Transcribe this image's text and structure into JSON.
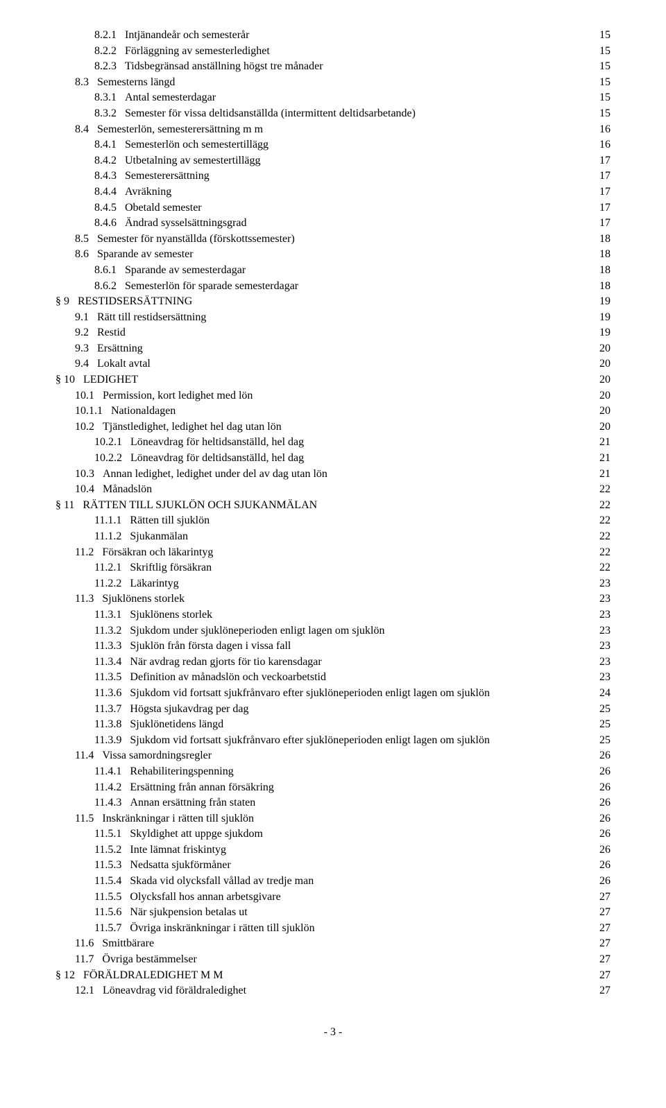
{
  "pageNumber": "- 3 -",
  "entries": [
    {
      "indent": 2,
      "num": "8.2.1",
      "title": "Intjänandeår och semesterår",
      "page": "15"
    },
    {
      "indent": 2,
      "num": "8.2.2",
      "title": "Förläggning av semesterledighet",
      "page": "15"
    },
    {
      "indent": 2,
      "num": "8.2.3",
      "title": "Tidsbegränsad anställning högst tre månader",
      "page": "15"
    },
    {
      "indent": 1,
      "num": "8.3",
      "title": "Semesterns längd",
      "page": "15"
    },
    {
      "indent": 2,
      "num": "8.3.1",
      "title": "Antal semesterdagar",
      "page": "15"
    },
    {
      "indent": 2,
      "num": "8.3.2",
      "title": "Semester för vissa deltidsanställda (intermittent deltidsarbetande)",
      "page": "15"
    },
    {
      "indent": 1,
      "num": "8.4",
      "title": "Semesterlön, semesterersättning m m",
      "page": "16"
    },
    {
      "indent": 2,
      "num": "8.4.1",
      "title": "Semesterlön och semestertillägg",
      "page": "16"
    },
    {
      "indent": 2,
      "num": "8.4.2",
      "title": "Utbetalning av semestertillägg",
      "page": "17"
    },
    {
      "indent": 2,
      "num": "8.4.3",
      "title": "Semesterersättning",
      "page": "17"
    },
    {
      "indent": 2,
      "num": "8.4.4",
      "title": "Avräkning",
      "page": "17"
    },
    {
      "indent": 2,
      "num": "8.4.5",
      "title": "Obetald semester",
      "page": "17"
    },
    {
      "indent": 2,
      "num": "8.4.6",
      "title": "Ändrad sysselsättningsgrad",
      "page": "17"
    },
    {
      "indent": 1,
      "num": "8.5",
      "title": "Semester för nyanställda (förskottssemester)",
      "page": "18"
    },
    {
      "indent": 1,
      "num": "8.6",
      "title": "Sparande av semester",
      "page": "18"
    },
    {
      "indent": 2,
      "num": "8.6.1",
      "title": "Sparande av semesterdagar",
      "page": "18"
    },
    {
      "indent": 2,
      "num": "8.6.2",
      "title": "Semesterlön för sparade semesterdagar",
      "page": "18"
    },
    {
      "indent": 0,
      "num": "§ 9",
      "title": "RESTIDSERSÄTTNING",
      "page": "19"
    },
    {
      "indent": 1,
      "num": "9.1",
      "title": "Rätt till restidsersättning",
      "page": "19"
    },
    {
      "indent": 1,
      "num": "9.2",
      "title": "Restid",
      "page": "19"
    },
    {
      "indent": 1,
      "num": "9.3",
      "title": "Ersättning",
      "page": "20"
    },
    {
      "indent": 1,
      "num": "9.4",
      "title": "Lokalt avtal",
      "page": "20"
    },
    {
      "indent": 0,
      "num": "§ 10",
      "title": "LEDIGHET",
      "page": "20"
    },
    {
      "indent": 1,
      "num": "10.1",
      "title": "Permission, kort ledighet med lön",
      "page": "20"
    },
    {
      "indent": 1,
      "num": "10.1.1",
      "title": "Nationaldagen",
      "page": "20"
    },
    {
      "indent": 1,
      "num": "10.2",
      "title": "Tjänstledighet, ledighet hel dag utan lön",
      "page": "20"
    },
    {
      "indent": 2,
      "num": "10.2.1",
      "title": "Löneavdrag för heltidsanställd, hel dag",
      "page": "21"
    },
    {
      "indent": 2,
      "num": "10.2.2",
      "title": "Löneavdrag för deltidsanställd, hel dag",
      "page": "21"
    },
    {
      "indent": 1,
      "num": "10.3",
      "title": "Annan ledighet, ledighet under del av dag utan lön",
      "page": "21"
    },
    {
      "indent": 1,
      "num": "10.4",
      "title": "Månadslön",
      "page": "22"
    },
    {
      "indent": 0,
      "num": "§ 11",
      "title": "RÄTTEN TILL SJUKLÖN OCH SJUKANMÄLAN",
      "page": "22"
    },
    {
      "indent": 2,
      "num": "11.1.1",
      "title": "Rätten till sjuklön",
      "page": "22"
    },
    {
      "indent": 2,
      "num": "11.1.2",
      "title": "Sjukanmälan",
      "page": "22"
    },
    {
      "indent": 1,
      "num": "11.2",
      "title": "Försäkran och läkarintyg",
      "page": "22"
    },
    {
      "indent": 2,
      "num": "11.2.1",
      "title": "Skriftlig försäkran",
      "page": "22"
    },
    {
      "indent": 2,
      "num": "11.2.2",
      "title": "Läkarintyg",
      "page": "23"
    },
    {
      "indent": 1,
      "num": "11.3",
      "title": "Sjuklönens storlek",
      "page": "23"
    },
    {
      "indent": 2,
      "num": "11.3.1",
      "title": "Sjuklönens storlek",
      "page": "23"
    },
    {
      "indent": 2,
      "num": "11.3.2",
      "title": "Sjukdom under sjuklöneperioden enligt lagen om sjuklön",
      "page": "23"
    },
    {
      "indent": 2,
      "num": "11.3.3",
      "title": "Sjuklön från första dagen i vissa fall",
      "page": "23"
    },
    {
      "indent": 2,
      "num": "11.3.4",
      "title": "När avdrag redan gjorts för tio karensdagar",
      "page": "23"
    },
    {
      "indent": 2,
      "num": "11.3.5",
      "title": "Definition av månadslön och veckoarbetstid",
      "page": "23"
    },
    {
      "indent": 2,
      "num": "11.3.6",
      "title": "Sjukdom vid fortsatt sjukfrånvaro efter sjuklöneperioden enligt lagen om sjuklön",
      "page": "24"
    },
    {
      "indent": 2,
      "num": "11.3.7",
      "title": "Högsta sjukavdrag per dag",
      "page": "25"
    },
    {
      "indent": 2,
      "num": "11.3.8",
      "title": "Sjuklönetidens längd",
      "page": "25"
    },
    {
      "indent": 2,
      "num": "11.3.9",
      "title": "Sjukdom vid fortsatt sjukfrånvaro efter sjuklöneperioden enligt lagen om sjuklön",
      "page": "25"
    },
    {
      "indent": 1,
      "num": "11.4",
      "title": "Vissa samordningsregler",
      "page": "26"
    },
    {
      "indent": 2,
      "num": "11.4.1",
      "title": "Rehabiliteringspenning",
      "page": "26"
    },
    {
      "indent": 2,
      "num": "11.4.2",
      "title": "Ersättning från annan försäkring",
      "page": "26"
    },
    {
      "indent": 2,
      "num": "11.4.3",
      "title": "Annan ersättning från staten",
      "page": "26"
    },
    {
      "indent": 1,
      "num": "11.5",
      "title": "Inskränkningar i rätten till sjuklön",
      "page": "26"
    },
    {
      "indent": 2,
      "num": "11.5.1",
      "title": "Skyldighet att uppge sjukdom",
      "page": "26"
    },
    {
      "indent": 2,
      "num": "11.5.2",
      "title": "Inte lämnat friskintyg",
      "page": "26"
    },
    {
      "indent": 2,
      "num": "11.5.3",
      "title": "Nedsatta sjukförmåner",
      "page": "26"
    },
    {
      "indent": 2,
      "num": "11.5.4",
      "title": "Skada vid olycksfall vållad av tredje man",
      "page": "26"
    },
    {
      "indent": 2,
      "num": "11.5.5",
      "title": "Olycksfall hos annan arbetsgivare",
      "page": "27"
    },
    {
      "indent": 2,
      "num": "11.5.6",
      "title": "När sjukpension betalas ut",
      "page": "27"
    },
    {
      "indent": 2,
      "num": "11.5.7",
      "title": "Övriga inskränkningar i rätten till sjuklön",
      "page": "27"
    },
    {
      "indent": 1,
      "num": "11.6",
      "title": "Smittbärare",
      "page": "27"
    },
    {
      "indent": 1,
      "num": "11.7",
      "title": "Övriga bestämmelser",
      "page": "27"
    },
    {
      "indent": 0,
      "num": "§ 12",
      "title": "FÖRÄLDRALEDIGHET M M",
      "page": "27"
    },
    {
      "indent": 1,
      "num": "12.1",
      "title": "Löneavdrag vid föräldraledighet",
      "page": "27"
    }
  ]
}
